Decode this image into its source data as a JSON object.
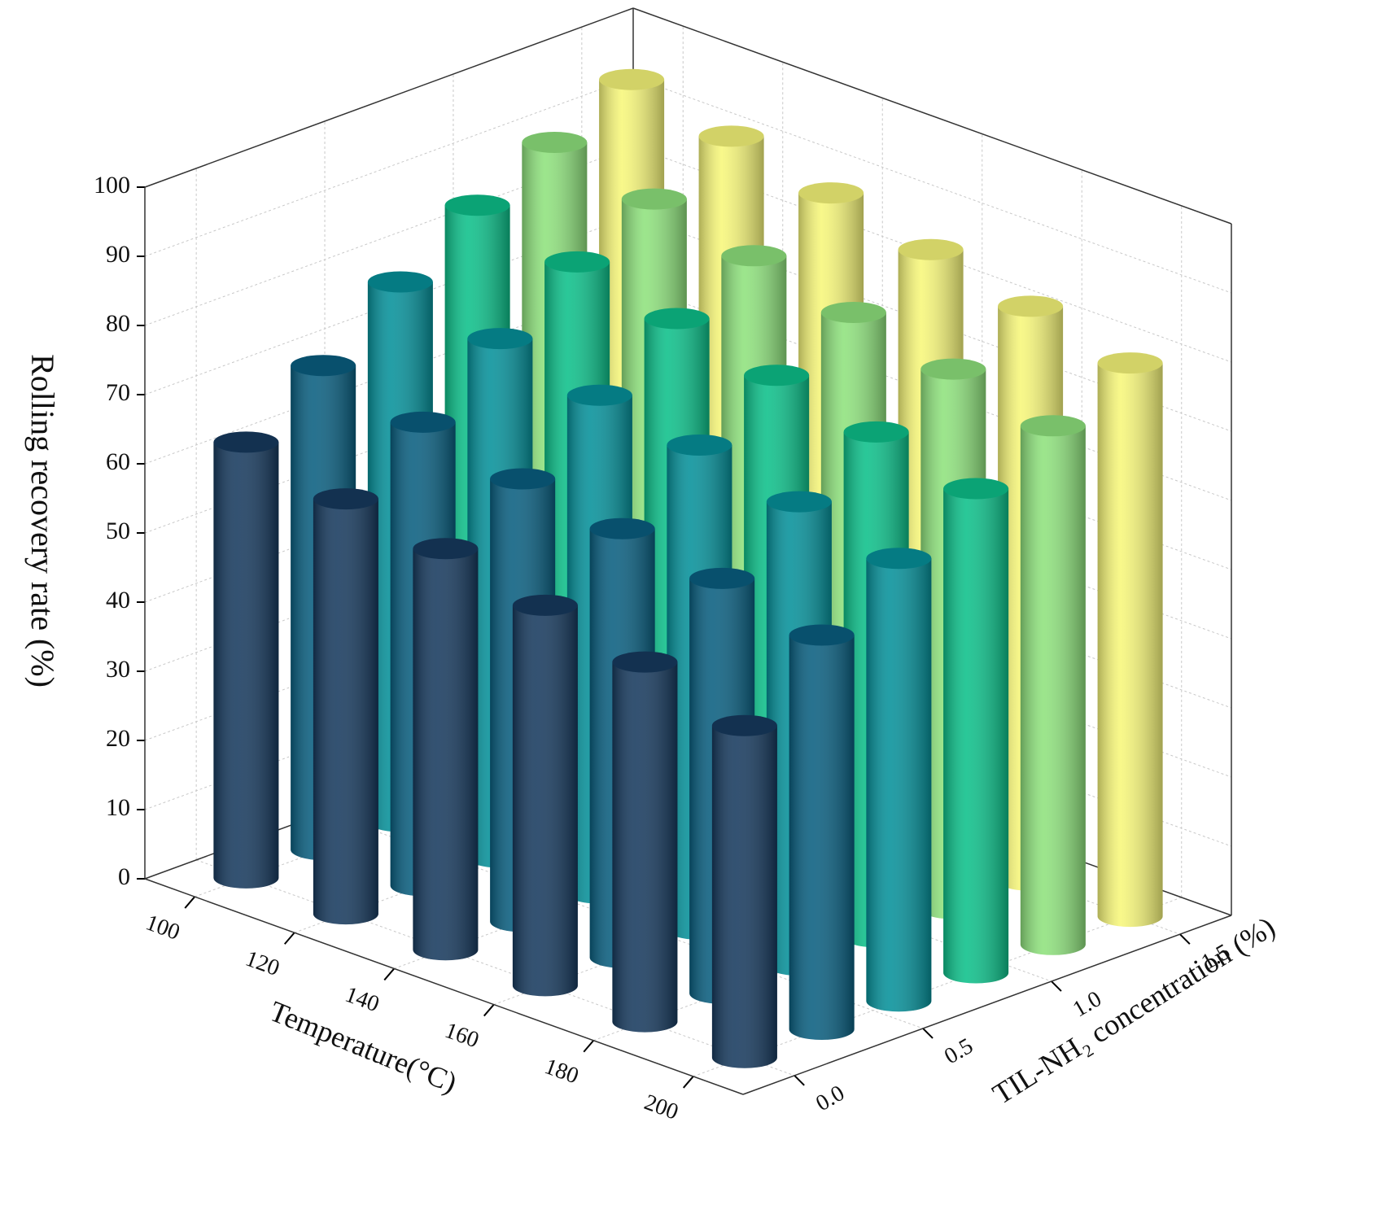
{
  "chart_data": {
    "type": "bar3d",
    "zlabel": "Rolling recovery rate (%)",
    "xlabel": "Temperature(°C)",
    "ylabel": "TIL-NH₂ concentration (%)",
    "temperatures": [
      100,
      120,
      140,
      160,
      180,
      200
    ],
    "concentrations": [
      0,
      0.3,
      0.6,
      0.9,
      1.2,
      1.5
    ],
    "colors": [
      "#173a5e",
      "#0a5f80",
      "#06919a",
      "#0dc08a",
      "#8fe27d",
      "#f7f77a"
    ],
    "values": [
      [
        63,
        60,
        58,
        55,
        52,
        48
      ],
      [
        70,
        67,
        64,
        62,
        60,
        57
      ],
      [
        78,
        75,
        72,
        70,
        67,
        64
      ],
      [
        85,
        82,
        79,
        76,
        73,
        70
      ],
      [
        90,
        87,
        84,
        81,
        78,
        75
      ],
      [
        95,
        92,
        89,
        86,
        83,
        80
      ]
    ],
    "xlim": [
      90,
      210
    ],
    "xticks": [
      100,
      120,
      140,
      160,
      180,
      200
    ],
    "ylim": [
      -0.2,
      1.7
    ],
    "yticks": [
      {
        "value": 0,
        "label": "0.0"
      },
      0.5,
      {
        "value": 1,
        "label": "1.0"
      },
      1.5
    ],
    "zlim": [
      0,
      100
    ],
    "zticks": [
      0,
      10,
      20,
      30,
      40,
      50,
      60,
      70,
      80,
      90,
      100
    ],
    "grid": true
  }
}
